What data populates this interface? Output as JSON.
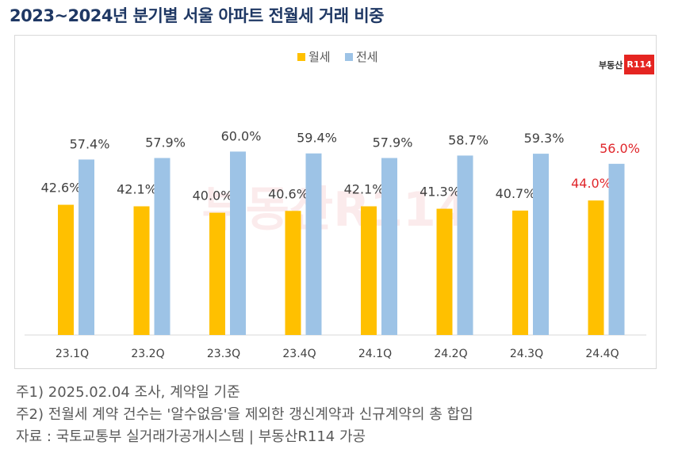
{
  "title": "2023~2024년 분기별 서울 아파트 전월세 거래 비중",
  "logo": {
    "text": "부동산",
    "badge": "R114"
  },
  "watermark": "부동산R114",
  "notes": [
    "주1) 2025.02.04 조사, 계약일 기준",
    "주2) 전월세 계약 건수는 '알수없음'을 제외한 갱신계약과 신규계약의 총 합임",
    "자료 : 국토교통부 실거래가공개시스템 | 부동산R114 가공"
  ],
  "colors": {
    "monthly": "#ffc000",
    "jeonse": "#9dc3e6",
    "highlight": "#e0262b",
    "label": "#404040",
    "title": "#1f3864"
  },
  "chart_data": {
    "type": "bar",
    "categories": [
      "23.1Q",
      "23.2Q",
      "23.3Q",
      "23.4Q",
      "24.1Q",
      "24.2Q",
      "24.3Q",
      "24.4Q"
    ],
    "series": [
      {
        "name": "월세",
        "values": [
          42.6,
          42.1,
          40.0,
          40.6,
          42.1,
          41.3,
          40.7,
          44.0
        ]
      },
      {
        "name": "전세",
        "values": [
          57.4,
          57.9,
          60.0,
          59.4,
          57.9,
          58.7,
          59.3,
          56.0
        ]
      }
    ],
    "data_labels": {
      "월세": [
        "42.6%",
        "42.1%",
        "40.0%",
        "40.6%",
        "42.1%",
        "41.3%",
        "40.7%",
        "44.0%"
      ],
      "전세": [
        "57.4%",
        "57.9%",
        "60.0%",
        "59.4%",
        "57.9%",
        "58.7%",
        "59.3%",
        "56.0%"
      ]
    },
    "highlight_category": "24.4Q",
    "legend_position": "top-center",
    "ylim": [
      0,
      60
    ],
    "grid": false
  }
}
